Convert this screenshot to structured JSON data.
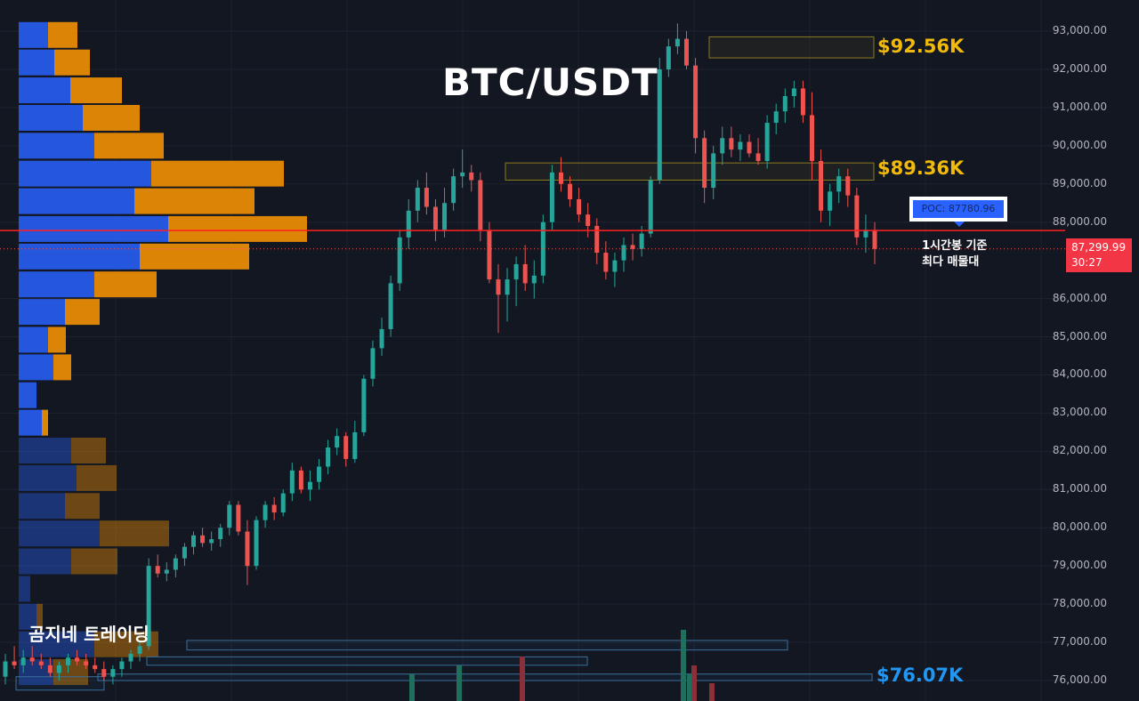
{
  "chart_data": {
    "type": "candlestick",
    "title": "BTC/USDT",
    "timeframe_note": [
      "1시간봉 기준",
      "최다 매물대"
    ],
    "watermark": "곰지네 트레이딩",
    "ylim": [
      75700,
      93300
    ],
    "yticks": [
      {
        "value": 93000,
        "label": "93,000.00"
      },
      {
        "value": 92000,
        "label": "92,000.00"
      },
      {
        "value": 91000,
        "label": "91,000.00"
      },
      {
        "value": 90000,
        "label": "90,000.00"
      },
      {
        "value": 89000,
        "label": "89,000.00"
      },
      {
        "value": 88000,
        "label": "88,000.00"
      },
      {
        "value": 86000,
        "label": "86,000.00"
      },
      {
        "value": 85000,
        "label": "85,000.00"
      },
      {
        "value": 84000,
        "label": "84,000.00"
      },
      {
        "value": 83000,
        "label": "83,000.00"
      },
      {
        "value": 82000,
        "label": "82,000.00"
      },
      {
        "value": 81000,
        "label": "81,000.00"
      },
      {
        "value": 80000,
        "label": "80,000.00"
      },
      {
        "value": 79000,
        "label": "79,000.00"
      },
      {
        "value": 78000,
        "label": "78,000.00"
      },
      {
        "value": 77000,
        "label": "77,000.00"
      },
      {
        "value": 76000,
        "label": "76,000.00"
      }
    ],
    "current_price": {
      "value": 87299.99,
      "label": "87,299.99",
      "countdown": "30:27"
    },
    "poc": {
      "value": 87780.96,
      "label": "POC: 87780.96"
    },
    "levels": [
      {
        "value": 92560,
        "label": "$92.56K",
        "zone": [
          92300,
          92850
        ]
      },
      {
        "value": 89360,
        "label": "$89.36K",
        "zone": [
          89100,
          89550
        ]
      },
      {
        "value": 76070,
        "label": "$76.07K"
      }
    ],
    "ohlc": [
      [
        76100,
        76700,
        75900,
        76500
      ],
      [
        76500,
        76900,
        76300,
        76400
      ],
      [
        76400,
        76800,
        76200,
        76600
      ],
      [
        76600,
        76900,
        76400,
        76500
      ],
      [
        76500,
        76700,
        76300,
        76400
      ],
      [
        76400,
        76600,
        76100,
        76200
      ],
      [
        76200,
        76500,
        76000,
        76400
      ],
      [
        76400,
        76700,
        76200,
        76600
      ],
      [
        76600,
        76800,
        76400,
        76500
      ],
      [
        76500,
        76700,
        76300,
        76400
      ],
      [
        76400,
        76600,
        76200,
        76300
      ],
      [
        76300,
        76500,
        76000,
        76100
      ],
      [
        76100,
        76400,
        75900,
        76300
      ],
      [
        76300,
        76600,
        76100,
        76500
      ],
      [
        76500,
        76800,
        76300,
        76700
      ],
      [
        76700,
        77000,
        76500,
        76900
      ],
      [
        76900,
        79200,
        76800,
        79000
      ],
      [
        79000,
        79300,
        78700,
        78800
      ],
      [
        78800,
        79100,
        78600,
        78900
      ],
      [
        78900,
        79300,
        78700,
        79200
      ],
      [
        79200,
        79600,
        79000,
        79500
      ],
      [
        79500,
        79900,
        79300,
        79800
      ],
      [
        79800,
        80000,
        79500,
        79600
      ],
      [
        79600,
        79900,
        79400,
        79700
      ],
      [
        79700,
        80100,
        79500,
        80000
      ],
      [
        80000,
        80700,
        79800,
        80600
      ],
      [
        80600,
        80700,
        79800,
        79900
      ],
      [
        79900,
        80200,
        78500,
        79000
      ],
      [
        79000,
        80300,
        78900,
        80200
      ],
      [
        80200,
        80700,
        80000,
        80600
      ],
      [
        80600,
        80800,
        80200,
        80400
      ],
      [
        80400,
        81000,
        80300,
        80900
      ],
      [
        80900,
        81700,
        80700,
        81500
      ],
      [
        81500,
        81600,
        80900,
        81000
      ],
      [
        81000,
        81500,
        80700,
        81200
      ],
      [
        81200,
        81800,
        81000,
        81600
      ],
      [
        81600,
        82300,
        81400,
        82100
      ],
      [
        82100,
        82600,
        81900,
        82400
      ],
      [
        82400,
        82500,
        81600,
        81800
      ],
      [
        81800,
        82800,
        81700,
        82500
      ],
      [
        82500,
        84000,
        82400,
        83900
      ],
      [
        83900,
        84900,
        83700,
        84700
      ],
      [
        84700,
        85500,
        84500,
        85200
      ],
      [
        85200,
        86600,
        85000,
        86400
      ],
      [
        86400,
        87800,
        86200,
        87600
      ],
      [
        87600,
        88600,
        87300,
        88300
      ],
      [
        88300,
        89100,
        88000,
        88900
      ],
      [
        88900,
        89300,
        88200,
        88400
      ],
      [
        88400,
        88600,
        87500,
        87800
      ],
      [
        87800,
        88900,
        87600,
        88500
      ],
      [
        88500,
        89400,
        88300,
        89200
      ],
      [
        89200,
        89900,
        88900,
        89300
      ],
      [
        89300,
        89500,
        88800,
        89100
      ],
      [
        89100,
        89300,
        87500,
        87800
      ],
      [
        87800,
        88000,
        86400,
        86500
      ],
      [
        86500,
        86900,
        85100,
        86100
      ],
      [
        86100,
        86800,
        85400,
        86500
      ],
      [
        86500,
        87100,
        85800,
        86900
      ],
      [
        86900,
        87400,
        86200,
        86400
      ],
      [
        86400,
        87000,
        86000,
        86600
      ],
      [
        86600,
        88200,
        86400,
        88000
      ],
      [
        88000,
        89500,
        87800,
        89300
      ],
      [
        89300,
        89700,
        88800,
        89000
      ],
      [
        89000,
        89200,
        88400,
        88600
      ],
      [
        88600,
        88900,
        88000,
        88200
      ],
      [
        88200,
        88500,
        87600,
        87900
      ],
      [
        87900,
        88100,
        86900,
        87200
      ],
      [
        87200,
        87500,
        86500,
        86700
      ],
      [
        86700,
        87200,
        86300,
        87000
      ],
      [
        87000,
        87600,
        86700,
        87400
      ],
      [
        87400,
        87700,
        87000,
        87300
      ],
      [
        87300,
        87900,
        87100,
        87700
      ],
      [
        87700,
        89200,
        87600,
        89100
      ],
      [
        89100,
        92300,
        89000,
        92000
      ],
      [
        92000,
        92800,
        91800,
        92600
      ],
      [
        92600,
        93200,
        92400,
        92800
      ],
      [
        92800,
        93000,
        92000,
        92100
      ],
      [
        92100,
        92300,
        89800,
        90200
      ],
      [
        90200,
        90400,
        88500,
        88900
      ],
      [
        88900,
        90000,
        88600,
        89800
      ],
      [
        89800,
        90500,
        89500,
        90200
      ],
      [
        90200,
        90500,
        89700,
        89900
      ],
      [
        89900,
        90300,
        89600,
        90100
      ],
      [
        90100,
        90300,
        89700,
        89800
      ],
      [
        89800,
        90200,
        89500,
        89600
      ],
      [
        89600,
        90800,
        89400,
        90600
      ],
      [
        90600,
        91100,
        90300,
        90900
      ],
      [
        90900,
        91500,
        90600,
        91300
      ],
      [
        91300,
        91700,
        91000,
        91500
      ],
      [
        91500,
        91700,
        90600,
        90800
      ],
      [
        90800,
        91400,
        89100,
        89600
      ],
      [
        89600,
        89900,
        88000,
        88300
      ],
      [
        88300,
        89000,
        87900,
        88800
      ],
      [
        88800,
        89400,
        88500,
        89200
      ],
      [
        89200,
        89400,
        88400,
        88700
      ],
      [
        88700,
        88900,
        87400,
        87600
      ],
      [
        87600,
        88200,
        87200,
        87800
      ],
      [
        87800,
        88000,
        86900,
        87300
      ]
    ],
    "volume_profile": [
      {
        "price": 92900,
        "buy": 33,
        "sell": 33
      },
      {
        "price": 92180,
        "buy": 40,
        "sell": 40
      },
      {
        "price": 91450,
        "buy": 58,
        "sell": 58
      },
      {
        "price": 90730,
        "buy": 72,
        "sell": 64
      },
      {
        "price": 90000,
        "buy": 85,
        "sell": 78
      },
      {
        "price": 89270,
        "buy": 149,
        "sell": 149
      },
      {
        "price": 88550,
        "buy": 130,
        "sell": 135
      },
      {
        "price": 87820,
        "buy": 168,
        "sell": 156
      },
      {
        "price": 87100,
        "buy": 136,
        "sell": 123
      },
      {
        "price": 86370,
        "buy": 85,
        "sell": 70
      },
      {
        "price": 85650,
        "buy": 52,
        "sell": 39
      },
      {
        "price": 84920,
        "buy": 33,
        "sell": 20
      },
      {
        "price": 84200,
        "buy": 39,
        "sell": 20
      },
      {
        "price": 83470,
        "buy": 20,
        "sell": 0
      },
      {
        "price": 82750,
        "buy": 26,
        "sell": 7
      },
      {
        "price": 82020,
        "buy": 59,
        "sell": 39
      },
      {
        "price": 81300,
        "buy": 65,
        "sell": 45
      },
      {
        "price": 80570,
        "buy": 52,
        "sell": 39
      },
      {
        "price": 79850,
        "buy": 91,
        "sell": 78
      },
      {
        "price": 79120,
        "buy": 59,
        "sell": 52
      },
      {
        "price": 78400,
        "buy": 13,
        "sell": 0
      },
      {
        "price": 77670,
        "buy": 20,
        "sell": 7
      },
      {
        "price": 76950,
        "buy": 85,
        "sell": 72
      },
      {
        "price": 76220,
        "buy": 39,
        "sell": 39
      }
    ],
    "colors": {
      "up": "#26a69a",
      "down": "#ef5350",
      "buy_profile": "#2962ff",
      "sell_profile": "#ff9800",
      "level": "#f0b90b",
      "low_level": "#2196f3",
      "poc_line": "#ff2020",
      "background": "#131722"
    }
  }
}
